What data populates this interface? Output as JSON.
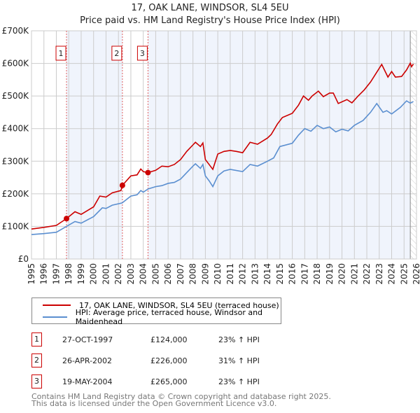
{
  "title": "17, OAK LANE, WINDSOR, SL4 5EU",
  "subtitle": "Price paid vs. HM Land Registry's House Price Index (HPI)",
  "chart_data": {
    "type": "line",
    "title": "17, OAK LANE, WINDSOR, SL4 5EU - Price paid vs. HM Land Registry's House Price Index (HPI)",
    "xlim": [
      1995,
      2026
    ],
    "ylim": [
      0,
      700000
    ],
    "y_ticks": [
      {
        "v": 0,
        "label": "£0"
      },
      {
        "v": 100000,
        "label": "£100K"
      },
      {
        "v": 200000,
        "label": "£200K"
      },
      {
        "v": 300000,
        "label": "£300K"
      },
      {
        "v": 400000,
        "label": "£400K"
      },
      {
        "v": 500000,
        "label": "£500K"
      },
      {
        "v": 600000,
        "label": "£600K"
      },
      {
        "v": 700000,
        "label": "£700K"
      }
    ],
    "x_ticks": [
      "1995",
      "1996",
      "1997",
      "1998",
      "1999",
      "2000",
      "2001",
      "2002",
      "2003",
      "2004",
      "2005",
      "2006",
      "2007",
      "2008",
      "2009",
      "2010",
      "2011",
      "2012",
      "2013",
      "2014",
      "2015",
      "2016",
      "2017",
      "2018",
      "2019",
      "2020",
      "2021",
      "2022",
      "2023",
      "2024",
      "2025",
      "2026"
    ],
    "grid": true,
    "series": [
      {
        "name": "17, OAK LANE, WINDSOR, SL4 5EU (terraced house)",
        "color": "#cc0000",
        "x": [
          1995,
          1996,
          1997,
          1997.82,
          1998.5,
          1999,
          2000,
          2000.5,
          2001,
          2001.5,
          2002.2,
          2002.32,
          2003,
          2003.5,
          2003.8,
          2004,
          2004.38,
          2005,
          2005.5,
          2006,
          2006.5,
          2007,
          2007.5,
          2008,
          2008.2,
          2008.6,
          2008.8,
          2009,
          2009.3,
          2009.6,
          2010,
          2010.5,
          2011,
          2011.5,
          2012,
          2012.6,
          2013.2,
          2014,
          2014.3,
          2014.8,
          2015.2,
          2016,
          2016.5,
          2016.9,
          2017.3,
          2017.6,
          2018.1,
          2018.5,
          2019,
          2019.3,
          2019.7,
          2020.4,
          2020.8,
          2021.3,
          2021.8,
          2022.3,
          2022.8,
          2023.2,
          2023.7,
          2024,
          2024.3,
          2024.8,
          2025.2,
          2025.5,
          2025.6,
          2025.75
        ],
        "y": [
          92000,
          97000,
          103000,
          124000,
          145000,
          137000,
          160000,
          193000,
          190000,
          203000,
          210000,
          226000,
          255000,
          258000,
          276000,
          268000,
          265000,
          272000,
          285000,
          283000,
          290000,
          305000,
          330000,
          350000,
          358000,
          345000,
          356000,
          305000,
          290000,
          275000,
          322000,
          330000,
          333000,
          330000,
          326000,
          358000,
          352000,
          371000,
          382000,
          414000,
          434000,
          447000,
          472000,
          500000,
          487000,
          500000,
          515000,
          498000,
          509000,
          509000,
          477000,
          489000,
          479000,
          500000,
          519000,
          543000,
          573000,
          597000,
          558000,
          575000,
          558000,
          560000,
          580000,
          601000,
          590000,
          598000
        ]
      },
      {
        "name": "HPI: Average price, terraced house, Windsor and Maidenhead",
        "color": "#5b8fd0",
        "x": [
          1995,
          1996,
          1997,
          1997.82,
          1998.5,
          1999,
          2000,
          2000.7,
          2001,
          2001.5,
          2002.3,
          2003,
          2003.5,
          2003.8,
          2004,
          2004.4,
          2005,
          2005.5,
          2006,
          2006.5,
          2007,
          2007.5,
          2008,
          2008.2,
          2008.6,
          2008.8,
          2009,
          2009.3,
          2009.6,
          2010,
          2010.5,
          2011,
          2012,
          2012.6,
          2013.2,
          2014,
          2014.5,
          2015,
          2016,
          2016.5,
          2017,
          2017.5,
          2018,
          2018.5,
          2019,
          2019.5,
          2020,
          2020.5,
          2021,
          2021.7,
          2022.3,
          2022.8,
          2023.3,
          2023.6,
          2024,
          2024.7,
          2025.2,
          2025.5,
          2025.75
        ],
        "y": [
          75000,
          78000,
          82000,
          100000,
          115000,
          110000,
          130000,
          157000,
          155000,
          165000,
          172000,
          193000,
          197000,
          210000,
          205000,
          215000,
          222000,
          225000,
          232000,
          235000,
          245000,
          265000,
          285000,
          292000,
          278000,
          290000,
          255000,
          240000,
          222000,
          255000,
          270000,
          275000,
          268000,
          290000,
          285000,
          300000,
          310000,
          345000,
          355000,
          380000,
          400000,
          392000,
          410000,
          400000,
          405000,
          390000,
          398000,
          393000,
          410000,
          425000,
          450000,
          477000,
          450000,
          455000,
          445000,
          465000,
          485000,
          478000,
          483000
        ]
      }
    ],
    "sales": [
      {
        "n": "1",
        "x": 1997.82,
        "y": 124000
      },
      {
        "n": "2",
        "x": 2002.32,
        "y": 226000
      },
      {
        "n": "3",
        "x": 2004.38,
        "y": 265000
      }
    ],
    "legend": "below"
  },
  "legend": {
    "property": "17, OAK LANE, WINDSOR, SL4 5EU (terraced house)",
    "hpi": "HPI: Average price, terraced house, Windsor and Maidenhead"
  },
  "transactions": [
    {
      "n": "1",
      "date": "27-OCT-1997",
      "price": "£124,000",
      "hpi": "23% ↑ HPI"
    },
    {
      "n": "2",
      "date": "26-APR-2002",
      "price": "£226,000",
      "hpi": "31% ↑ HPI"
    },
    {
      "n": "3",
      "date": "19-MAY-2004",
      "price": "£265,000",
      "hpi": "23% ↑ HPI"
    }
  ],
  "footer": {
    "line1": "Contains HM Land Registry data © Crown copyright and database right 2025.",
    "line2": "This data is licensed under the Open Government Licence v3.0."
  }
}
